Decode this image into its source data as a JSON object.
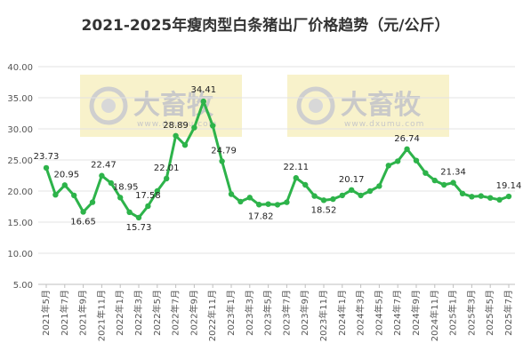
{
  "chart_data": {
    "type": "line",
    "title": "2021-2025年瘦肉型白条猪出厂价格趋势（元/公斤）",
    "xlabel": "",
    "ylabel": "",
    "ylim": [
      5,
      40
    ],
    "yticks": [
      "5.00",
      "10.00",
      "15.00",
      "20.00",
      "25.00",
      "30.00",
      "35.00",
      "40.00"
    ],
    "x": [
      "2021年5月",
      "2021年6月",
      "2021年7月",
      "2021年8月",
      "2021年9月",
      "2021年10月",
      "2021年11月",
      "2021年12月",
      "2022年1月",
      "2022年2月",
      "2022年3月",
      "2022年4月",
      "2022年5月",
      "2022年6月",
      "2022年7月",
      "2022年8月",
      "2022年9月",
      "2022年10月",
      "2022年11月",
      "2022年12月",
      "2023年1月",
      "2023年2月",
      "2023年3月",
      "2023年4月",
      "2023年5月",
      "2023年6月",
      "2023年7月",
      "2023年8月",
      "2023年9月",
      "2023年10月",
      "2023年11月",
      "2023年12月",
      "2024年1月",
      "2024年2月",
      "2024年3月",
      "2024年4月",
      "2024年5月",
      "2024年6月",
      "2024年7月",
      "2024年8月",
      "2024年9月",
      "2024年10月",
      "2024年11月",
      "2024年12月",
      "2025年1月",
      "2025年2月",
      "2025年3月",
      "2025年4月",
      "2025年5月",
      "2025年6月",
      "2025年7月"
    ],
    "xtick_labels": [
      "2021年5月",
      "2021年7月",
      "2021年9月",
      "2021年11月",
      "2022年1月",
      "2022年3月",
      "2022年5月",
      "2022年7月",
      "2022年9月",
      "2022年11月",
      "2023年1月",
      "2023年3月",
      "2023年5月",
      "2023年7月",
      "2023年9月",
      "2023年11月",
      "2024年1月",
      "2024年3月",
      "2024年5月",
      "2024年7月",
      "2024年9月",
      "2024年11月",
      "2025年1月",
      "2025年3月",
      "2025年5月",
      "2025年7月"
    ],
    "series": [
      {
        "name": "",
        "color": "#2db34a",
        "values": [
          23.73,
          19.4,
          20.95,
          19.3,
          16.65,
          18.2,
          22.47,
          21.3,
          18.95,
          16.6,
          15.73,
          17.58,
          20.0,
          22.01,
          28.89,
          27.4,
          30.2,
          34.41,
          30.5,
          24.79,
          19.5,
          18.3,
          18.95,
          17.82,
          17.9,
          17.8,
          18.2,
          22.11,
          21.0,
          19.2,
          18.52,
          18.7,
          19.3,
          20.17,
          19.3,
          20.0,
          20.8,
          24.1,
          24.8,
          26.74,
          24.9,
          22.9,
          21.7,
          21.0,
          21.34,
          19.6,
          19.1,
          19.2,
          18.9,
          18.6,
          19.14
        ],
        "labels": {
          "0": "23.73",
          "2": "20.95",
          "4": "16.65",
          "6": "22.47",
          "8": "18.95",
          "10": "15.73",
          "11": "17.58",
          "13": "22.01",
          "14": "28.89",
          "17": "34.41",
          "19": "24.79",
          "23": "17.82",
          "27": "22.11",
          "30": "18.52",
          "33": "20.17",
          "39": "26.74",
          "44": "21.34",
          "50": "19.14"
        }
      }
    ],
    "grid": true,
    "legend": "none"
  },
  "watermarks": [
    {
      "text": "大畜牧",
      "url": "www.dxumu.com"
    },
    {
      "text": "大畜牧",
      "url": "www.dxumu.com"
    }
  ]
}
